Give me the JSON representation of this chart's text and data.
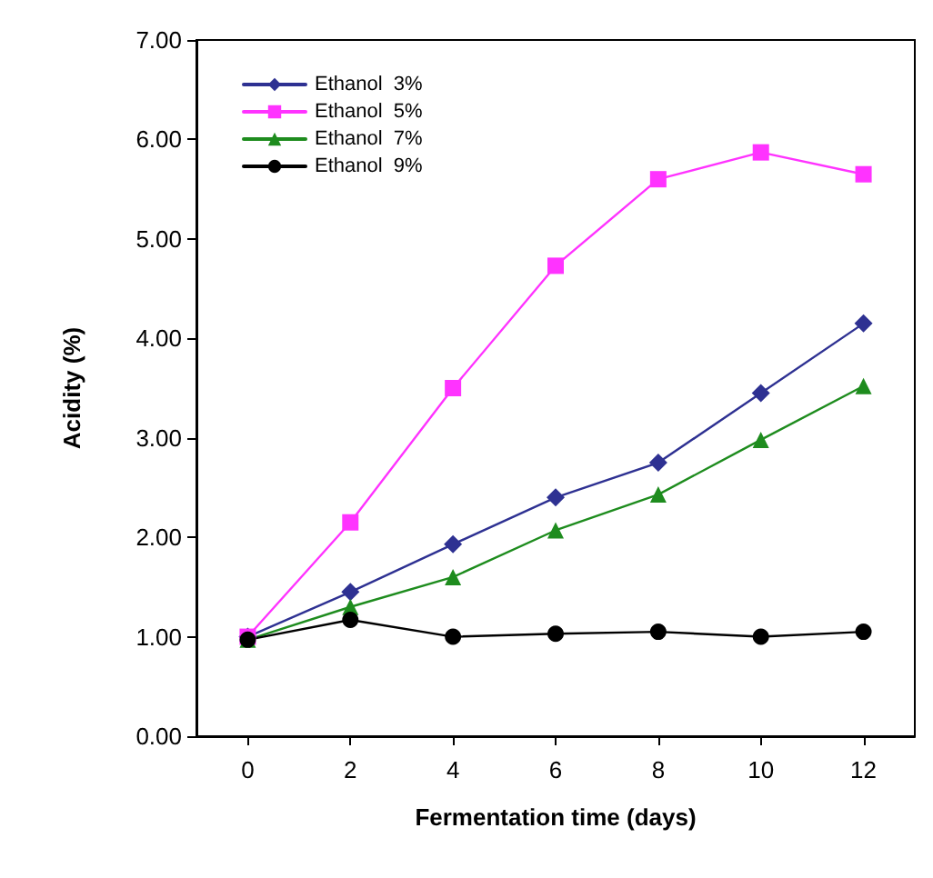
{
  "chart_data": {
    "type": "line",
    "xlabel": "Fermentation time (days)",
    "ylabel": "Acidity (%)",
    "x": [
      0,
      2,
      4,
      6,
      8,
      10,
      12
    ],
    "series": [
      {
        "name": "Ethanol  3%",
        "color": "#2e3192",
        "marker": "diamond",
        "values": [
          1.0,
          1.45,
          1.93,
          2.4,
          2.75,
          3.45,
          4.15
        ]
      },
      {
        "name": "Ethanol  5%",
        "color": "#ff33ff",
        "marker": "square",
        "values": [
          1.0,
          2.15,
          3.5,
          4.73,
          5.6,
          5.87,
          5.65
        ]
      },
      {
        "name": "Ethanol  7%",
        "color": "#1e8c1e",
        "marker": "triangle",
        "values": [
          0.97,
          1.3,
          1.6,
          2.07,
          2.43,
          2.98,
          3.52
        ]
      },
      {
        "name": "Ethanol  9%",
        "color": "#000000",
        "marker": "circle",
        "values": [
          0.97,
          1.17,
          1.0,
          1.03,
          1.05,
          1.0,
          1.05
        ]
      }
    ],
    "xlim": [
      -1,
      13
    ],
    "xticks": [
      0,
      2,
      4,
      6,
      8,
      10,
      12
    ],
    "ylim": [
      0,
      7
    ],
    "yticks": [
      {
        "value": 0,
        "label": "0.00"
      },
      {
        "value": 1,
        "label": "1.00"
      },
      {
        "value": 2,
        "label": "2.00"
      },
      {
        "value": 3,
        "label": "3.00"
      },
      {
        "value": 4,
        "label": "4.00"
      },
      {
        "value": 5,
        "label": "5.00"
      },
      {
        "value": 6,
        "label": "6.00"
      },
      {
        "value": 7,
        "label": "7.00"
      }
    ],
    "grid": false,
    "legend": "top left",
    "line_style": "solid"
  }
}
